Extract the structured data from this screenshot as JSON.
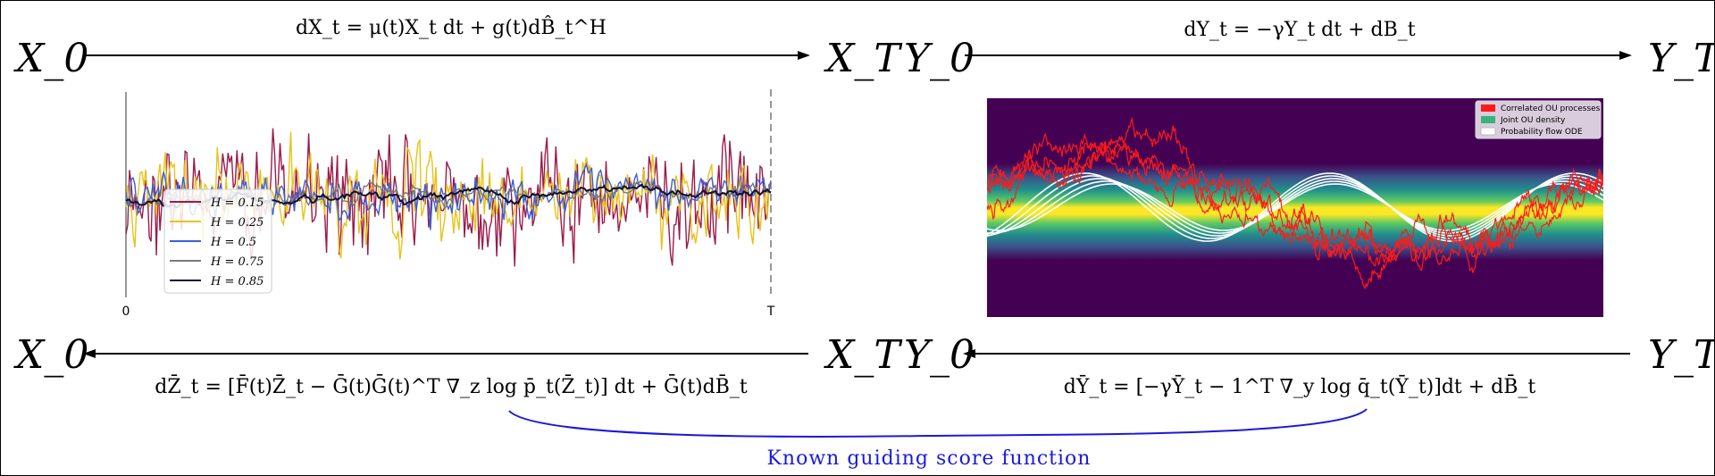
{
  "nodes": {
    "top_left_start": "X_0",
    "top_left_end": "X_T",
    "top_right_start": "Y_0",
    "top_right_end": "Y_T",
    "bottom_left_start": "X_0",
    "bottom_left_end": "X_T",
    "bottom_right_start": "Y_0",
    "bottom_right_end": "Y_T"
  },
  "equations": {
    "forward_fbm": "dX_t = μ(t)X_t dt + g(t)dB̂_t^H",
    "forward_ou": "dY_t = −γY_t dt + dB_t",
    "reverse_fbm": "dZ̄_t = [F̄(t)Z̄_t − Ḡ(t)Ḡ(t)^T ∇_z log p̄_t(Z̄_t)] dt + Ḡ(t)dB̄_t",
    "reverse_ou": "dȲ_t = [−γȲ_t − 1^T ∇_y log q̄_t(Ȳ_t)]dt + dB̄_t"
  },
  "guide_label": "Known guiding score function",
  "left_plot": {
    "tick_start": "0",
    "tick_end": "T",
    "legend": [
      {
        "label": "H = 0.15",
        "color": "#9b1b4b"
      },
      {
        "label": "H = 0.25",
        "color": "#e8c21a"
      },
      {
        "label": "H = 0.5",
        "color": "#3a5fd8"
      },
      {
        "label": "H = 0.75",
        "color": "#7a7a7a"
      },
      {
        "label": "H = 0.85",
        "color": "#111133"
      }
    ]
  },
  "right_plot": {
    "legend": [
      {
        "label": "Correlated OU processes",
        "color": "#ff1a1a"
      },
      {
        "label": "Joint OU density",
        "color": "#37b47a"
      },
      {
        "label": "Probability flow ODE",
        "color": "#ffffff"
      }
    ]
  }
}
